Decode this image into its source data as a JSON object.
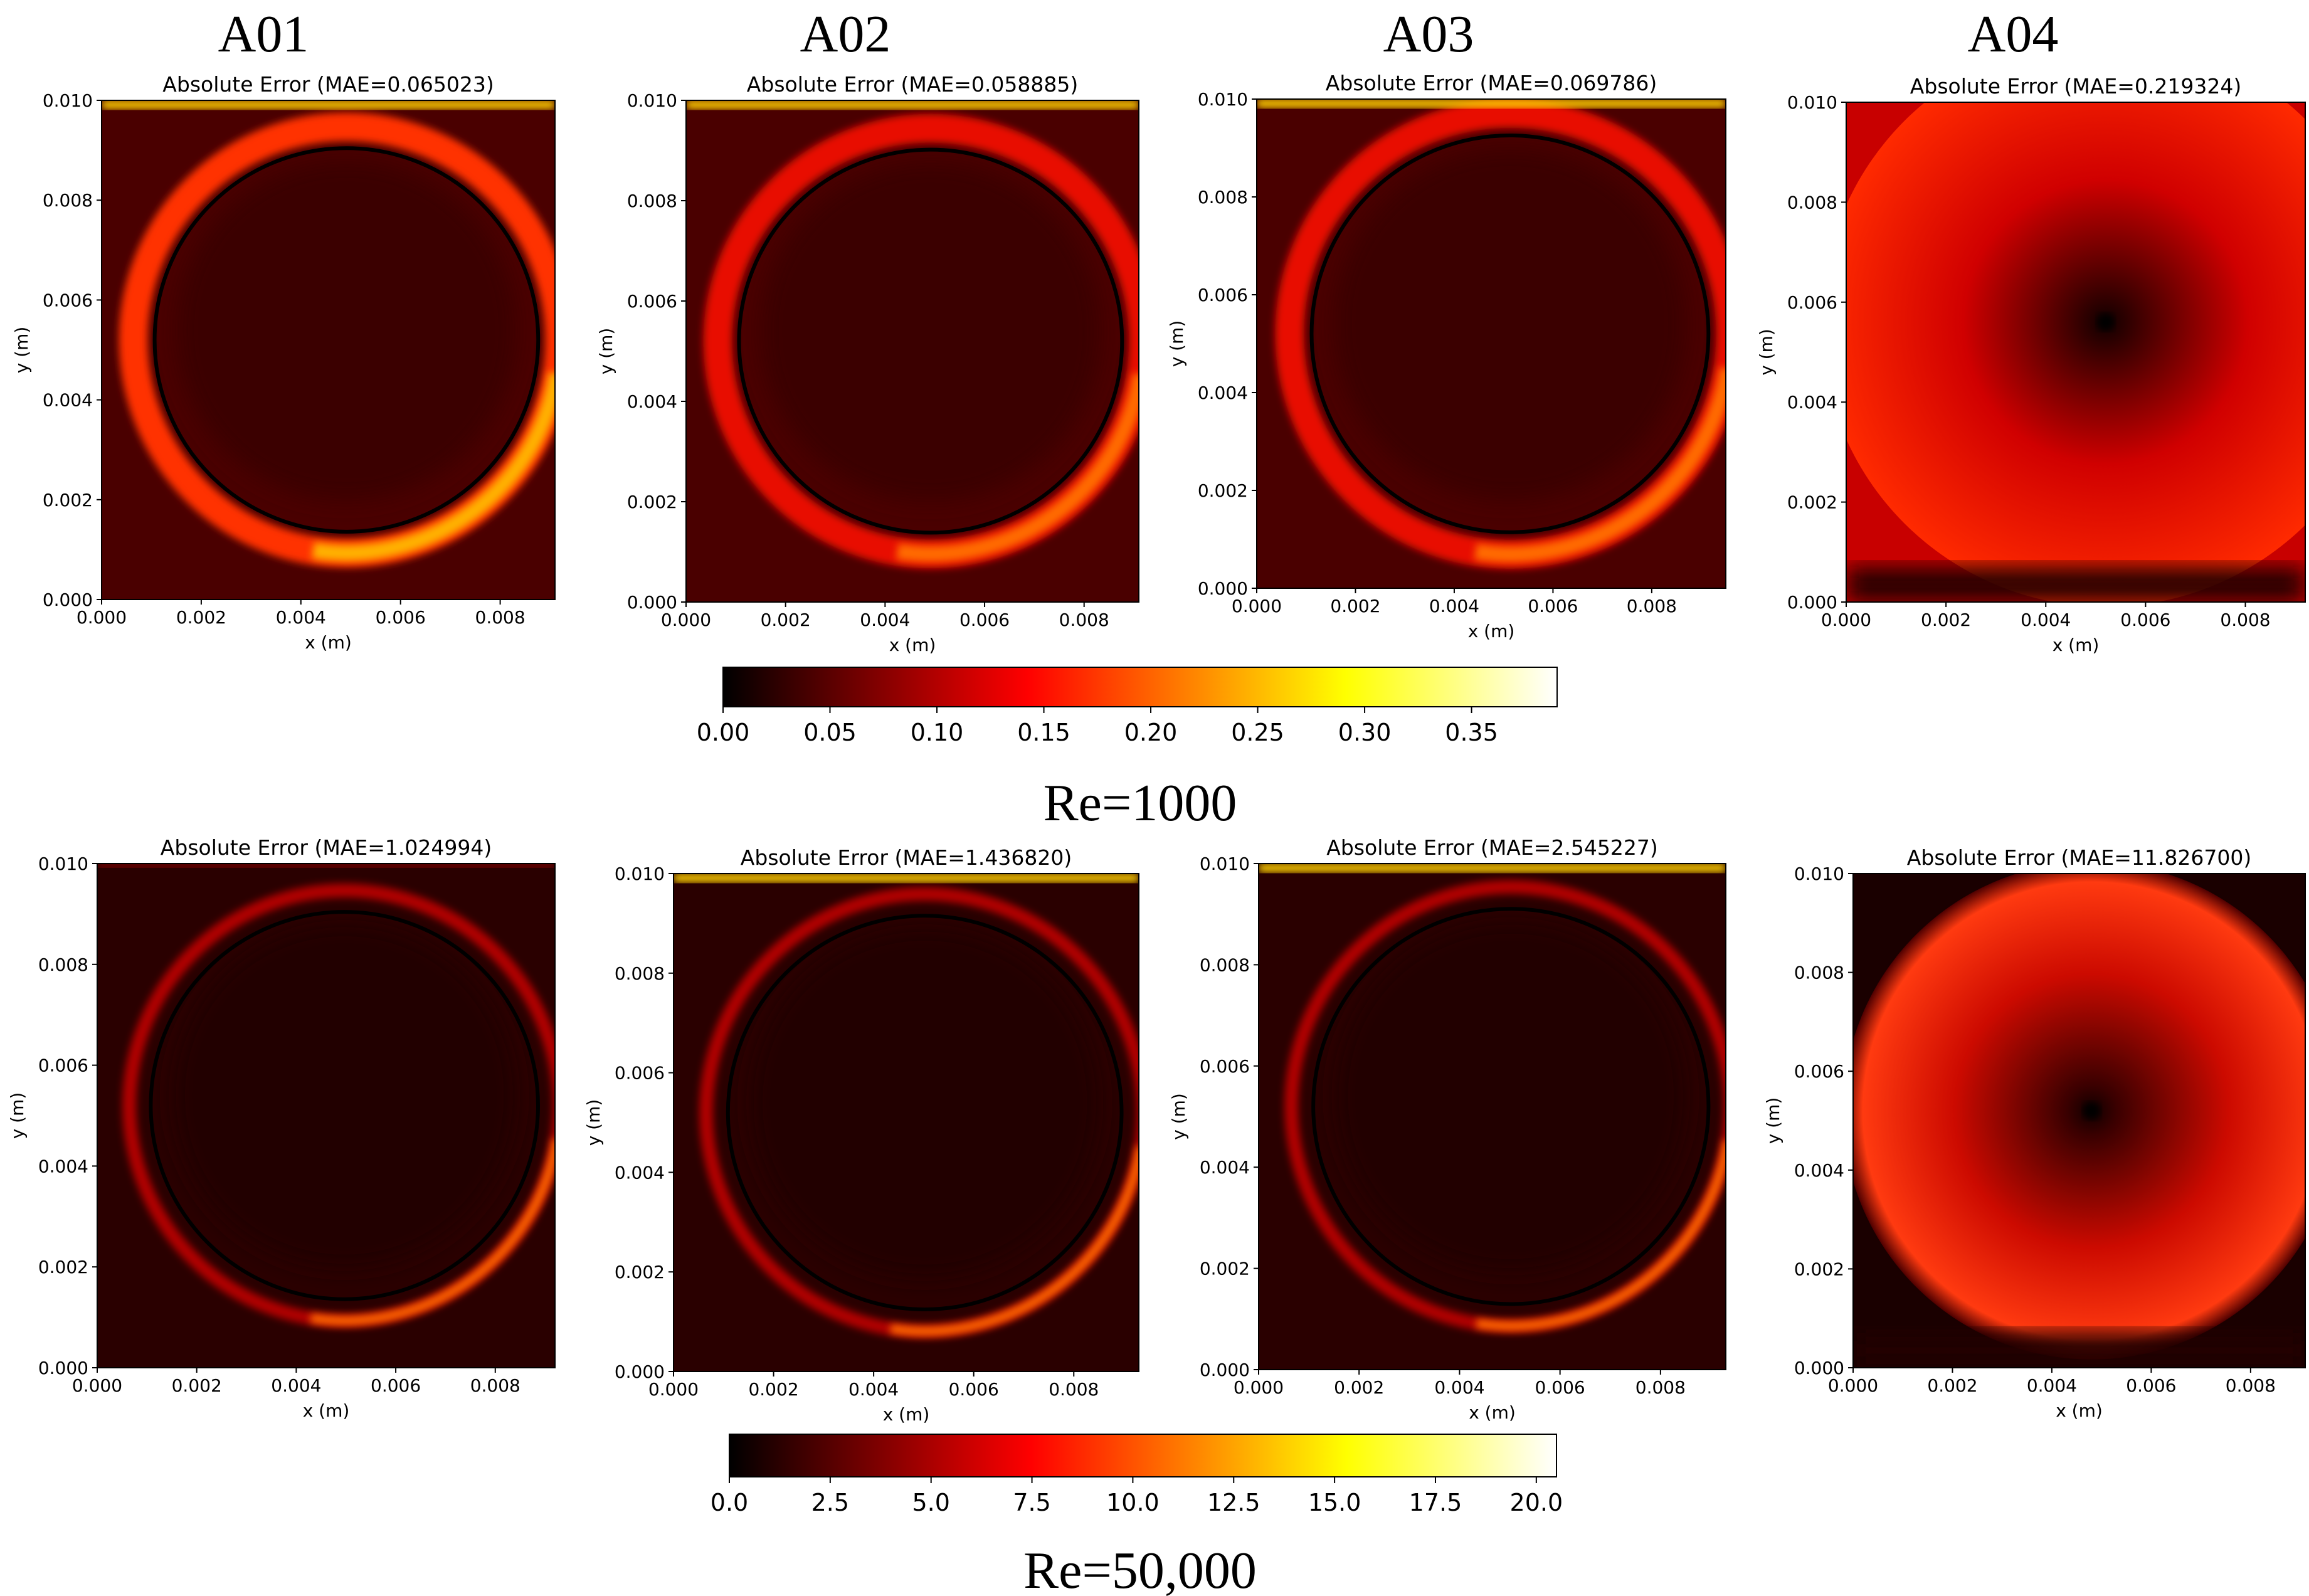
{
  "column_headers": [
    "A01",
    "A02",
    "A03",
    "A04"
  ],
  "row_labels": [
    "Re=1000",
    "Re=50,000"
  ],
  "chart_data": [
    {
      "type": "heatmap",
      "title": "Absolute Error (MAE=0.065023)",
      "xlabel": "x (m)",
      "ylabel": "y (m)",
      "xlim": [
        0,
        0.0091
      ],
      "ylim": [
        0,
        0.01
      ],
      "xticks": [
        "0.000",
        "0.002",
        "0.004",
        "0.006",
        "0.008"
      ],
      "yticks": [
        "0.000",
        "0.002",
        "0.004",
        "0.006",
        "0.008",
        "0.010"
      ],
      "row": "Re=1000",
      "column": "A01",
      "colorbar_range": [
        0,
        0.39
      ],
      "pattern": "circular ring of high error, brightest along bottom and lower-right arc and top lid"
    },
    {
      "type": "heatmap",
      "title": "Absolute Error (MAE=0.058885)",
      "xlabel": "x (m)",
      "ylabel": "y (m)",
      "xlim": [
        0,
        0.0091
      ],
      "ylim": [
        0,
        0.01
      ],
      "xticks": [
        "0.000",
        "0.002",
        "0.004",
        "0.006",
        "0.008"
      ],
      "yticks": [
        "0.000",
        "0.002",
        "0.004",
        "0.006",
        "0.008",
        "0.010"
      ],
      "row": "Re=1000",
      "column": "A02",
      "colorbar_range": [
        0,
        0.39
      ],
      "pattern": "circular ring of error, bright top lid"
    },
    {
      "type": "heatmap",
      "title": "Absolute Error (MAE=0.069786)",
      "xlabel": "x (m)",
      "ylabel": "y (m)",
      "xlim": [
        0,
        0.0095
      ],
      "ylim": [
        0,
        0.01
      ],
      "xticks": [
        "0.000",
        "0.002",
        "0.004",
        "0.006",
        "0.008"
      ],
      "yticks": [
        "0.000",
        "0.002",
        "0.004",
        "0.006",
        "0.008",
        "0.010"
      ],
      "row": "Re=1000",
      "column": "A03",
      "colorbar_range": [
        0,
        0.39
      ],
      "pattern": "circular ring of error, bright top lid"
    },
    {
      "type": "heatmap",
      "title": "Absolute Error (MAE=0.219324)",
      "xlabel": "x (m)",
      "ylabel": "y (m)",
      "xlim": [
        0,
        0.0092
      ],
      "ylim": [
        0,
        0.01
      ],
      "xticks": [
        "0.000",
        "0.002",
        "0.004",
        "0.006",
        "0.008"
      ],
      "yticks": [
        "0.000",
        "0.002",
        "0.004",
        "0.006",
        "0.008",
        "0.010"
      ],
      "row": "Re=1000",
      "column": "A04",
      "colorbar_range": [
        0,
        0.39
      ],
      "pattern": "broad red field with dark vortex core near (0.0052, 0.0056)"
    },
    {
      "type": "heatmap",
      "title": "Absolute Error (MAE=1.024994)",
      "xlabel": "x (m)",
      "ylabel": "y (m)",
      "xlim": [
        0,
        0.0092
      ],
      "ylim": [
        0,
        0.01
      ],
      "xticks": [
        "0.000",
        "0.002",
        "0.004",
        "0.006",
        "0.008"
      ],
      "yticks": [
        "0.000",
        "0.002",
        "0.004",
        "0.006",
        "0.008",
        "0.010"
      ],
      "row": "Re=50,000",
      "column": "A01",
      "colorbar_range": [
        0,
        20.5
      ],
      "pattern": "mostly dark, thin bright arc on lower-right"
    },
    {
      "type": "heatmap",
      "title": "Absolute Error (MAE=1.436820)",
      "xlabel": "x (m)",
      "ylabel": "y (m)",
      "xlim": [
        0,
        0.0093
      ],
      "ylim": [
        0,
        0.01
      ],
      "xticks": [
        "0.000",
        "0.002",
        "0.004",
        "0.006",
        "0.008"
      ],
      "yticks": [
        "0.000",
        "0.002",
        "0.004",
        "0.006",
        "0.008",
        "0.010"
      ],
      "row": "Re=50,000",
      "column": "A02",
      "colorbar_range": [
        0,
        20.5
      ],
      "pattern": "dark field with thin circular ring, bright lower-right arc"
    },
    {
      "type": "heatmap",
      "title": "Absolute Error (MAE=2.545227)",
      "xlabel": "x (m)",
      "ylabel": "y (m)",
      "xlim": [
        0,
        0.0093
      ],
      "ylim": [
        0,
        0.01
      ],
      "xticks": [
        "0.000",
        "0.002",
        "0.004",
        "0.006",
        "0.008"
      ],
      "yticks": [
        "0.000",
        "0.002",
        "0.004",
        "0.006",
        "0.008",
        "0.010"
      ],
      "row": "Re=50,000",
      "column": "A03",
      "colorbar_range": [
        0,
        20.5
      ],
      "pattern": "dark field with circular ring and bright top lid"
    },
    {
      "type": "heatmap",
      "title": "Absolute Error (MAE=11.826700)",
      "xlabel": "x (m)",
      "ylabel": "y (m)",
      "xlim": [
        0,
        0.0091
      ],
      "ylim": [
        0,
        0.01
      ],
      "xticks": [
        "0.000",
        "0.002",
        "0.004",
        "0.006",
        "0.008"
      ],
      "yticks": [
        "0.000",
        "0.002",
        "0.004",
        "0.006",
        "0.008",
        "0.010"
      ],
      "row": "Re=50,000",
      "column": "A04",
      "colorbar_range": [
        0,
        20.5
      ],
      "pattern": "large red disk with dark vortex core near (0.0048, 0.0052)"
    },
    {
      "type": "colorbar",
      "colormap": "hot",
      "vmin": 0,
      "vmax": 0.39,
      "ticks": [
        "0.00",
        "0.05",
        "0.10",
        "0.15",
        "0.20",
        "0.25",
        "0.30",
        "0.35"
      ],
      "row": "Re=1000"
    },
    {
      "type": "colorbar",
      "colormap": "hot",
      "vmin": 0,
      "vmax": 20.5,
      "ticks": [
        "0.0",
        "2.5",
        "5.0",
        "7.5",
        "10.0",
        "12.5",
        "15.0",
        "17.5",
        "20.0"
      ],
      "row": "Re=50,000"
    }
  ]
}
